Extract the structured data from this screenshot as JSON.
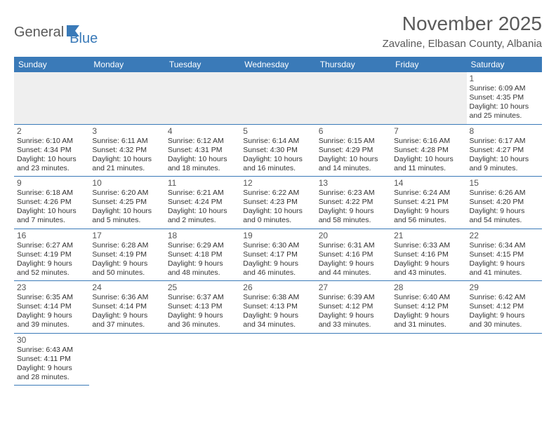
{
  "logo": {
    "part1": "General",
    "part2": "Blue"
  },
  "title": "November 2025",
  "location": "Zavaline, Elbasan County, Albania",
  "colors": {
    "header_bg": "#3a7ab8",
    "header_text": "#ffffff",
    "border": "#3a7ab8",
    "blank_row_bg": "#efefef",
    "body_text": "#333333",
    "title_text": "#5a5a5a"
  },
  "calendar": {
    "day_headers": [
      "Sunday",
      "Monday",
      "Tuesday",
      "Wednesday",
      "Thursday",
      "Friday",
      "Saturday"
    ],
    "weeks": [
      [
        null,
        null,
        null,
        null,
        null,
        null,
        {
          "day": "1",
          "sunrise": "Sunrise: 6:09 AM",
          "sunset": "Sunset: 4:35 PM",
          "daylight1": "Daylight: 10 hours",
          "daylight2": "and 25 minutes."
        }
      ],
      [
        {
          "day": "2",
          "sunrise": "Sunrise: 6:10 AM",
          "sunset": "Sunset: 4:34 PM",
          "daylight1": "Daylight: 10 hours",
          "daylight2": "and 23 minutes."
        },
        {
          "day": "3",
          "sunrise": "Sunrise: 6:11 AM",
          "sunset": "Sunset: 4:32 PM",
          "daylight1": "Daylight: 10 hours",
          "daylight2": "and 21 minutes."
        },
        {
          "day": "4",
          "sunrise": "Sunrise: 6:12 AM",
          "sunset": "Sunset: 4:31 PM",
          "daylight1": "Daylight: 10 hours",
          "daylight2": "and 18 minutes."
        },
        {
          "day": "5",
          "sunrise": "Sunrise: 6:14 AM",
          "sunset": "Sunset: 4:30 PM",
          "daylight1": "Daylight: 10 hours",
          "daylight2": "and 16 minutes."
        },
        {
          "day": "6",
          "sunrise": "Sunrise: 6:15 AM",
          "sunset": "Sunset: 4:29 PM",
          "daylight1": "Daylight: 10 hours",
          "daylight2": "and 14 minutes."
        },
        {
          "day": "7",
          "sunrise": "Sunrise: 6:16 AM",
          "sunset": "Sunset: 4:28 PM",
          "daylight1": "Daylight: 10 hours",
          "daylight2": "and 11 minutes."
        },
        {
          "day": "8",
          "sunrise": "Sunrise: 6:17 AM",
          "sunset": "Sunset: 4:27 PM",
          "daylight1": "Daylight: 10 hours",
          "daylight2": "and 9 minutes."
        }
      ],
      [
        {
          "day": "9",
          "sunrise": "Sunrise: 6:18 AM",
          "sunset": "Sunset: 4:26 PM",
          "daylight1": "Daylight: 10 hours",
          "daylight2": "and 7 minutes."
        },
        {
          "day": "10",
          "sunrise": "Sunrise: 6:20 AM",
          "sunset": "Sunset: 4:25 PM",
          "daylight1": "Daylight: 10 hours",
          "daylight2": "and 5 minutes."
        },
        {
          "day": "11",
          "sunrise": "Sunrise: 6:21 AM",
          "sunset": "Sunset: 4:24 PM",
          "daylight1": "Daylight: 10 hours",
          "daylight2": "and 2 minutes."
        },
        {
          "day": "12",
          "sunrise": "Sunrise: 6:22 AM",
          "sunset": "Sunset: 4:23 PM",
          "daylight1": "Daylight: 10 hours",
          "daylight2": "and 0 minutes."
        },
        {
          "day": "13",
          "sunrise": "Sunrise: 6:23 AM",
          "sunset": "Sunset: 4:22 PM",
          "daylight1": "Daylight: 9 hours",
          "daylight2": "and 58 minutes."
        },
        {
          "day": "14",
          "sunrise": "Sunrise: 6:24 AM",
          "sunset": "Sunset: 4:21 PM",
          "daylight1": "Daylight: 9 hours",
          "daylight2": "and 56 minutes."
        },
        {
          "day": "15",
          "sunrise": "Sunrise: 6:26 AM",
          "sunset": "Sunset: 4:20 PM",
          "daylight1": "Daylight: 9 hours",
          "daylight2": "and 54 minutes."
        }
      ],
      [
        {
          "day": "16",
          "sunrise": "Sunrise: 6:27 AM",
          "sunset": "Sunset: 4:19 PM",
          "daylight1": "Daylight: 9 hours",
          "daylight2": "and 52 minutes."
        },
        {
          "day": "17",
          "sunrise": "Sunrise: 6:28 AM",
          "sunset": "Sunset: 4:19 PM",
          "daylight1": "Daylight: 9 hours",
          "daylight2": "and 50 minutes."
        },
        {
          "day": "18",
          "sunrise": "Sunrise: 6:29 AM",
          "sunset": "Sunset: 4:18 PM",
          "daylight1": "Daylight: 9 hours",
          "daylight2": "and 48 minutes."
        },
        {
          "day": "19",
          "sunrise": "Sunrise: 6:30 AM",
          "sunset": "Sunset: 4:17 PM",
          "daylight1": "Daylight: 9 hours",
          "daylight2": "and 46 minutes."
        },
        {
          "day": "20",
          "sunrise": "Sunrise: 6:31 AM",
          "sunset": "Sunset: 4:16 PM",
          "daylight1": "Daylight: 9 hours",
          "daylight2": "and 44 minutes."
        },
        {
          "day": "21",
          "sunrise": "Sunrise: 6:33 AM",
          "sunset": "Sunset: 4:16 PM",
          "daylight1": "Daylight: 9 hours",
          "daylight2": "and 43 minutes."
        },
        {
          "day": "22",
          "sunrise": "Sunrise: 6:34 AM",
          "sunset": "Sunset: 4:15 PM",
          "daylight1": "Daylight: 9 hours",
          "daylight2": "and 41 minutes."
        }
      ],
      [
        {
          "day": "23",
          "sunrise": "Sunrise: 6:35 AM",
          "sunset": "Sunset: 4:14 PM",
          "daylight1": "Daylight: 9 hours",
          "daylight2": "and 39 minutes."
        },
        {
          "day": "24",
          "sunrise": "Sunrise: 6:36 AM",
          "sunset": "Sunset: 4:14 PM",
          "daylight1": "Daylight: 9 hours",
          "daylight2": "and 37 minutes."
        },
        {
          "day": "25",
          "sunrise": "Sunrise: 6:37 AM",
          "sunset": "Sunset: 4:13 PM",
          "daylight1": "Daylight: 9 hours",
          "daylight2": "and 36 minutes."
        },
        {
          "day": "26",
          "sunrise": "Sunrise: 6:38 AM",
          "sunset": "Sunset: 4:13 PM",
          "daylight1": "Daylight: 9 hours",
          "daylight2": "and 34 minutes."
        },
        {
          "day": "27",
          "sunrise": "Sunrise: 6:39 AM",
          "sunset": "Sunset: 4:12 PM",
          "daylight1": "Daylight: 9 hours",
          "daylight2": "and 33 minutes."
        },
        {
          "day": "28",
          "sunrise": "Sunrise: 6:40 AM",
          "sunset": "Sunset: 4:12 PM",
          "daylight1": "Daylight: 9 hours",
          "daylight2": "and 31 minutes."
        },
        {
          "day": "29",
          "sunrise": "Sunrise: 6:42 AM",
          "sunset": "Sunset: 4:12 PM",
          "daylight1": "Daylight: 9 hours",
          "daylight2": "and 30 minutes."
        }
      ],
      [
        {
          "day": "30",
          "sunrise": "Sunrise: 6:43 AM",
          "sunset": "Sunset: 4:11 PM",
          "daylight1": "Daylight: 9 hours",
          "daylight2": "and 28 minutes."
        },
        null,
        null,
        null,
        null,
        null,
        null
      ]
    ]
  }
}
